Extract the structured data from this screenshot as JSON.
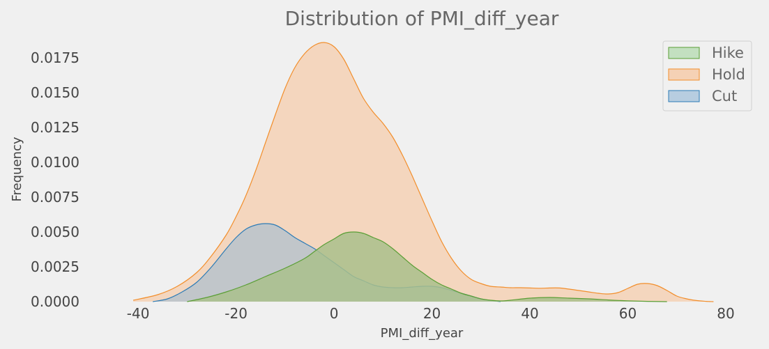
{
  "chart_data": {
    "type": "area",
    "title": "Distribution of PMI_diff_year",
    "xlabel": "PMI_diff_year",
    "ylabel": "Frequency",
    "xlim": [
      -45,
      80
    ],
    "ylim": [
      0,
      0.0185
    ],
    "x_ticks": [
      -40,
      -20,
      0,
      20,
      40,
      60,
      80
    ],
    "y_ticks": [
      0.0,
      0.0025,
      0.005,
      0.0075,
      0.01,
      0.0125,
      0.015,
      0.0175
    ],
    "y_tick_labels": [
      "0.0000",
      "0.0025",
      "0.0050",
      "0.0075",
      "0.0100",
      "0.0125",
      "0.0150",
      "0.0175"
    ],
    "grid": false,
    "legend_position": "top-right",
    "series": [
      {
        "name": "Hold",
        "fill": "#f5d1b5",
        "stroke": "#f28e2b",
        "x": [
          -41,
          -36,
          -32,
          -28,
          -25,
          -22,
          -20,
          -18,
          -16,
          -14,
          -12,
          -10,
          -8,
          -6,
          -4,
          -2,
          0,
          2,
          4,
          6,
          8,
          10,
          12,
          14,
          16,
          18,
          20,
          22,
          24,
          26,
          28,
          30,
          32,
          34,
          36,
          38,
          40,
          42,
          44,
          46,
          48,
          50,
          52,
          54,
          56,
          58,
          60,
          62,
          64,
          66,
          68,
          70,
          72,
          74,
          76,
          77.5
        ],
        "y": [
          0.0001,
          0.0005,
          0.0011,
          0.0021,
          0.0033,
          0.0048,
          0.0061,
          0.0076,
          0.0094,
          0.0114,
          0.0134,
          0.0153,
          0.0168,
          0.0178,
          0.0184,
          0.0186,
          0.0183,
          0.0174,
          0.016,
          0.0146,
          0.0136,
          0.0128,
          0.0118,
          0.0105,
          0.009,
          0.0074,
          0.0058,
          0.0043,
          0.0031,
          0.0022,
          0.0016,
          0.0013,
          0.0011,
          0.00105,
          0.001,
          0.001,
          0.00098,
          0.00096,
          0.00098,
          0.00098,
          0.0009,
          0.0008,
          0.0007,
          0.0006,
          0.00055,
          0.00065,
          0.00095,
          0.00125,
          0.0013,
          0.00115,
          0.0008,
          0.0004,
          0.0002,
          8e-05,
          2e-05,
          0.0
        ]
      },
      {
        "name": "Cut",
        "fill": "#b7c3cd",
        "stroke": "#2c7bb6",
        "x": [
          -37,
          -34,
          -31,
          -28,
          -25,
          -22,
          -20,
          -18,
          -16,
          -14,
          -12,
          -10,
          -8,
          -6,
          -4,
          -2,
          0,
          2,
          4,
          6,
          8,
          10,
          12,
          14,
          16,
          18,
          20,
          22,
          24,
          26,
          28,
          30,
          32,
          34
        ],
        "y": [
          0.0,
          0.0002,
          0.0007,
          0.0014,
          0.0025,
          0.0038,
          0.0046,
          0.0052,
          0.0055,
          0.0056,
          0.0055,
          0.0051,
          0.0046,
          0.0042,
          0.0038,
          0.0033,
          0.0028,
          0.0023,
          0.0018,
          0.0015,
          0.0012,
          0.00105,
          0.001,
          0.001,
          0.00105,
          0.0011,
          0.0011,
          0.001,
          0.0008,
          0.0006,
          0.0004,
          0.0002,
          8e-05,
          0.0
        ]
      },
      {
        "name": "Hike",
        "fill": "#a9bf8c",
        "stroke": "#5a9e35",
        "x": [
          -30,
          -26,
          -22,
          -18,
          -14,
          -10,
          -6,
          -4,
          -2,
          0,
          2,
          4,
          6,
          8,
          10,
          12,
          14,
          16,
          18,
          20,
          22,
          24,
          26,
          28,
          30,
          32,
          34,
          36,
          40,
          44,
          48,
          52,
          56,
          60,
          64,
          68
        ],
        "y": [
          0.0,
          0.0003,
          0.0007,
          0.0012,
          0.0018,
          0.0024,
          0.0031,
          0.0036,
          0.0041,
          0.0045,
          0.0049,
          0.005,
          0.0049,
          0.0046,
          0.0043,
          0.0038,
          0.0032,
          0.0026,
          0.0021,
          0.0016,
          0.0012,
          0.0009,
          0.0006,
          0.0004,
          0.0002,
          0.0001,
          5e-05,
          0.0001,
          0.00025,
          0.0003,
          0.00025,
          0.0002,
          0.00012,
          6e-05,
          2e-05,
          0.0
        ]
      }
    ],
    "legend_order": [
      "Hike",
      "Hold",
      "Cut"
    ],
    "legend_fill": {
      "Hike": "#c3e0c0",
      "Hold": "#f5d1b5",
      "Cut": "#b7cde0"
    }
  }
}
